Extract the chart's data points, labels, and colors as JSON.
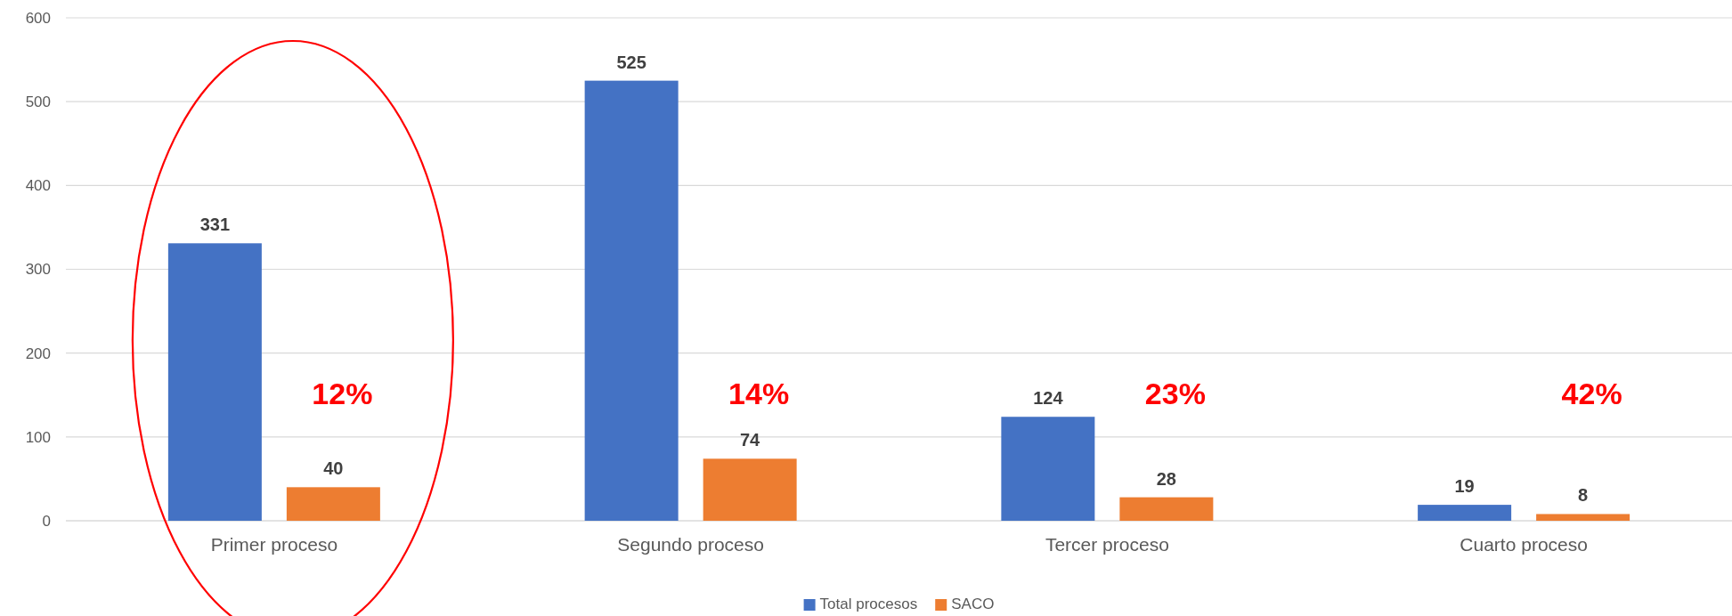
{
  "chart_data": {
    "type": "bar",
    "categories": [
      "Primer proceso",
      "Segundo proceso",
      "Tercer proceso",
      "Cuarto proceso"
    ],
    "series": [
      {
        "name": "Total procesos",
        "color": "#4472c4",
        "values": [
          331,
          525,
          124,
          19
        ]
      },
      {
        "name": "SACO",
        "color": "#ed7d31",
        "values": [
          40,
          74,
          28,
          8
        ]
      }
    ],
    "ylim": [
      0,
      600
    ],
    "yticks": [
      0,
      100,
      200,
      300,
      400,
      500,
      600
    ],
    "grid": "y",
    "legend": "bottom",
    "data_labels": true,
    "annotations": [
      "12%",
      "14%",
      "23%",
      "42%"
    ]
  }
}
